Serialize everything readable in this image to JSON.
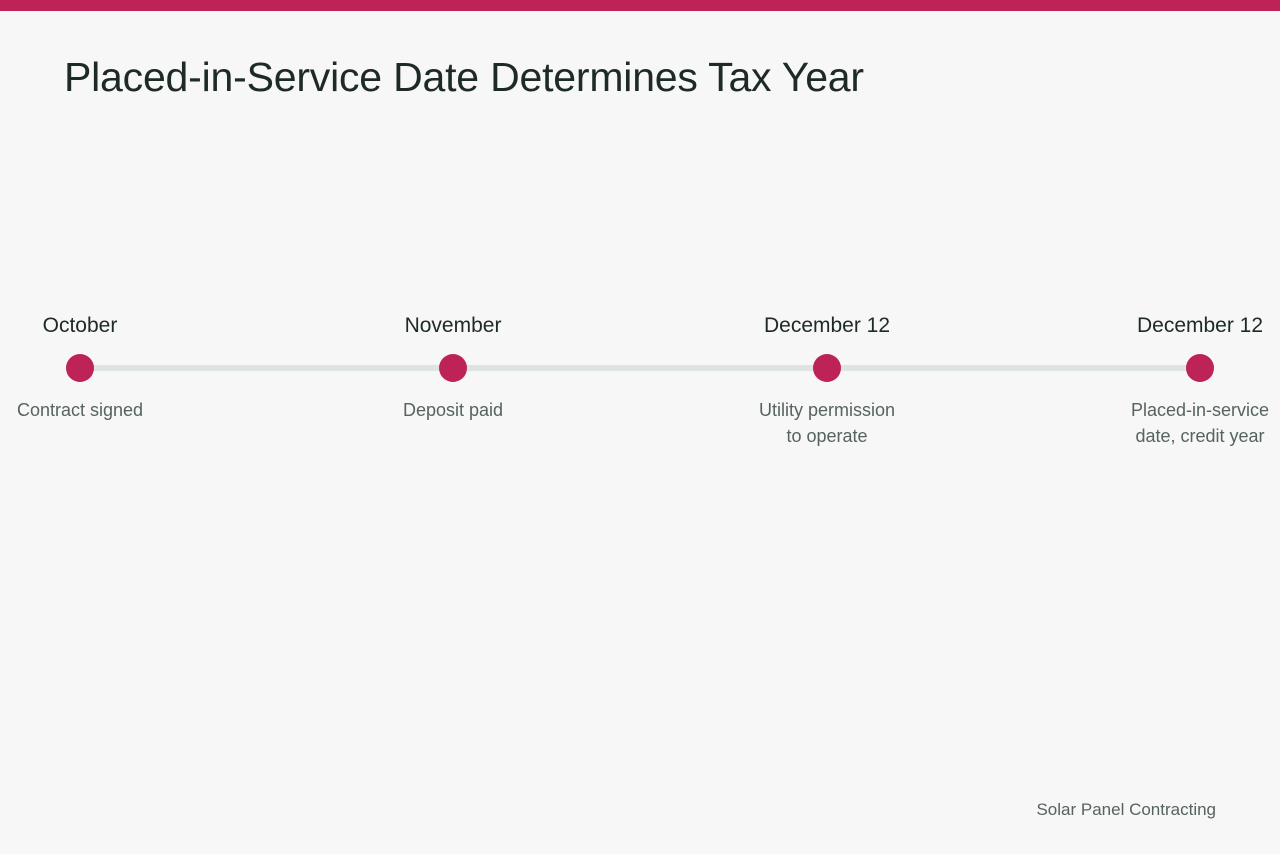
{
  "title": "Placed-in-Service Date Determines Tax Year",
  "accent_color": "#bd2356",
  "milestones": [
    {
      "date": "October",
      "lines": [
        "Contract signed"
      ]
    },
    {
      "date": "November",
      "lines": [
        "Deposit paid"
      ]
    },
    {
      "date": "December 12",
      "lines": [
        "Utility permission",
        "to operate"
      ]
    },
    {
      "date": "December 12",
      "lines": [
        "Placed-in-service",
        "date, credit year"
      ]
    }
  ],
  "footer": "Solar Panel Contracting"
}
